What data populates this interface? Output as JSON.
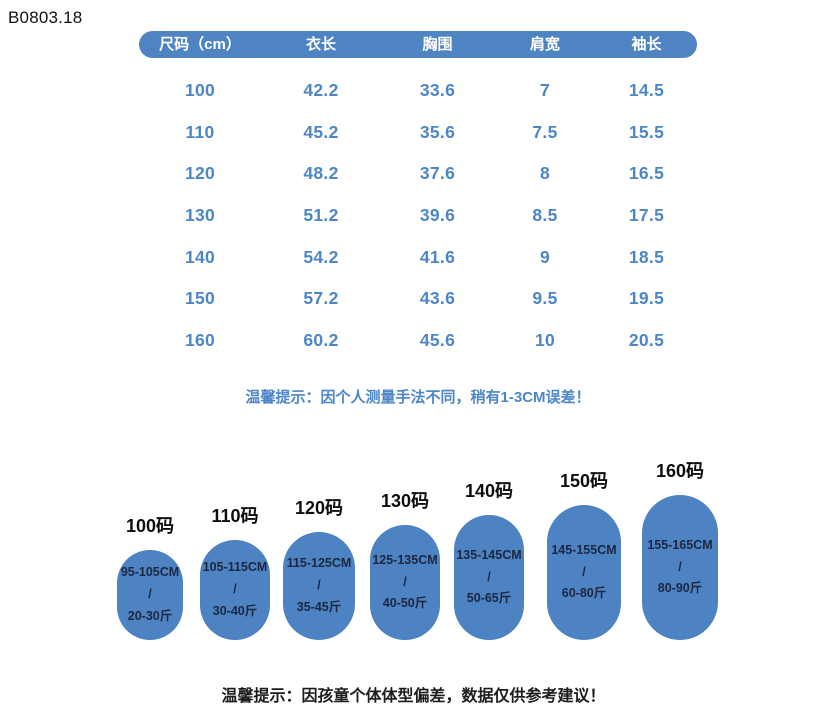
{
  "page": {
    "code": "B0803.18"
  },
  "colors": {
    "primary_blue": "#4e84c2",
    "table_text_blue": "#4c86c8",
    "oval_text_dark": "#1c2740"
  },
  "size_table": {
    "headers": [
      "尺码（cm）",
      "衣长",
      "胸围",
      "肩宽",
      "袖长"
    ],
    "rows": [
      [
        "100",
        "42.2",
        "33.6",
        "7",
        "14.5"
      ],
      [
        "110",
        "45.2",
        "35.6",
        "7.5",
        "15.5"
      ],
      [
        "120",
        "48.2",
        "37.6",
        "8",
        "16.5"
      ],
      [
        "130",
        "51.2",
        "39.6",
        "8.5",
        "17.5"
      ],
      [
        "140",
        "54.2",
        "41.6",
        "9",
        "18.5"
      ],
      [
        "150",
        "57.2",
        "43.6",
        "9.5",
        "19.5"
      ],
      [
        "160",
        "60.2",
        "45.6",
        "10",
        "20.5"
      ]
    ],
    "note": "温馨提示：因个人测量手法不同，稍有1-3CM误差！"
  },
  "size_guide": {
    "items": [
      {
        "label": "100码",
        "height_range": "95-105CM",
        "divider": "/",
        "weight_range": "20-30斤"
      },
      {
        "label": "110码",
        "height_range": "105-115CM",
        "divider": "/",
        "weight_range": "30-40斤"
      },
      {
        "label": "120码",
        "height_range": "115-125CM",
        "divider": "/",
        "weight_range": "35-45斤"
      },
      {
        "label": "130码",
        "height_range": "125-135CM",
        "divider": "/",
        "weight_range": "40-50斤"
      },
      {
        "label": "140码",
        "height_range": "135-145CM",
        "divider": "/",
        "weight_range": "50-65斤"
      },
      {
        "label": "150码",
        "height_range": "145-155CM",
        "divider": "/",
        "weight_range": "60-80斤"
      },
      {
        "label": "160码",
        "height_range": "155-165CM",
        "divider": "/",
        "weight_range": "80-90斤"
      }
    ],
    "note": "温馨提示：因孩童个体体型偏差，数据仅供参考建议！"
  }
}
